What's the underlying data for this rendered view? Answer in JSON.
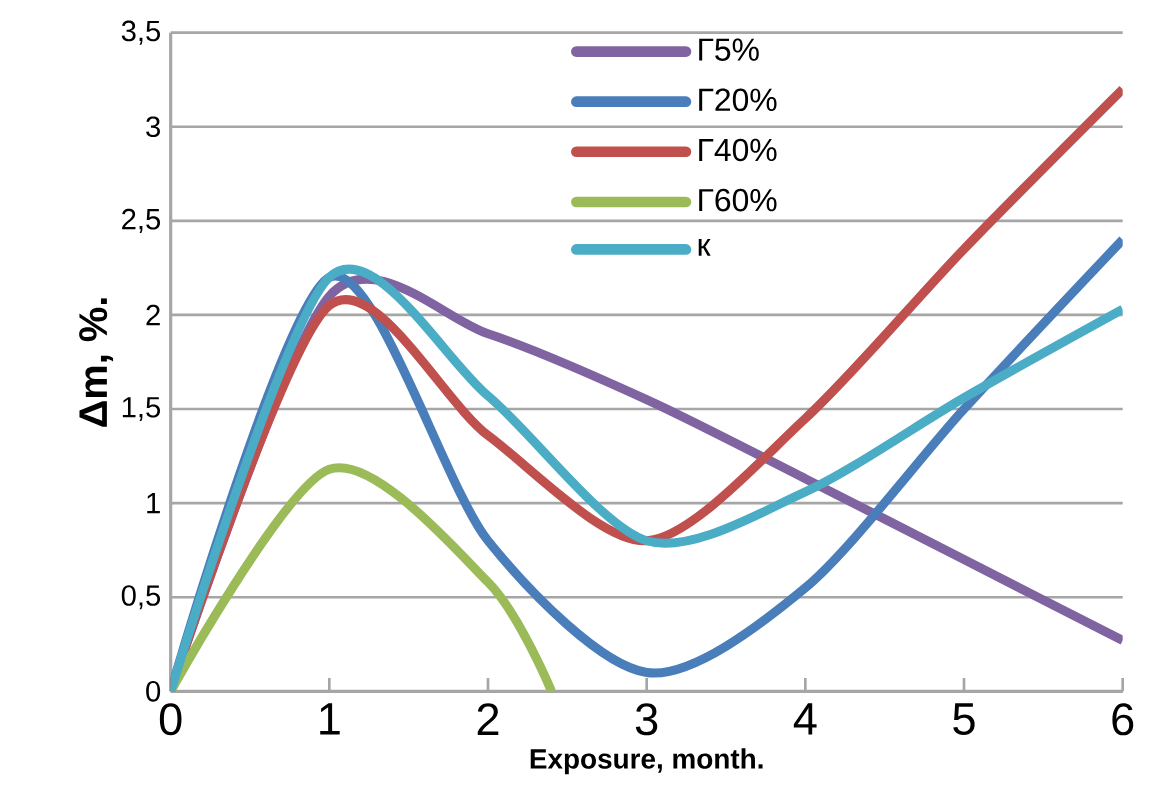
{
  "chart_data": {
    "type": "line",
    "xlabel": "Exposure, month.",
    "ylabel": "Δm, %.",
    "x": [
      0,
      1,
      2,
      3,
      4,
      5,
      6
    ],
    "series": [
      {
        "name": "Г5%",
        "color": "#8064a2",
        "values": [
          0,
          2.1,
          1.9,
          1.55,
          1.13,
          0.7,
          0.27
        ]
      },
      {
        "name": "Г20%",
        "color": "#4a7ebb",
        "values": [
          0,
          2.2,
          0.8,
          0.1,
          0.55,
          1.5,
          2.4
        ]
      },
      {
        "name": "Г40%",
        "color": "#c0504d",
        "values": [
          0,
          2.05,
          1.36,
          0.8,
          1.45,
          2.35,
          3.2
        ]
      },
      {
        "name": "Г60%",
        "color": "#9bbb59",
        "x": [
          0,
          1,
          2,
          2.4
        ],
        "values": [
          0,
          1.18,
          0.58,
          0
        ]
      },
      {
        "name": "к",
        "color": "#4bacc6",
        "values": [
          0,
          2.2,
          1.57,
          0.8,
          1.06,
          1.56,
          2.03
        ]
      }
    ],
    "xlim": [
      0,
      6
    ],
    "xticks": [
      0,
      1,
      2,
      3,
      4,
      5,
      6
    ],
    "ylim": [
      0,
      3.5
    ],
    "yticks": [
      0,
      {
        "value": 0.5,
        "label": "0,5"
      },
      1,
      {
        "value": 1.5,
        "label": "1,5"
      },
      2,
      {
        "value": 2.5,
        "label": "2,5"
      },
      3,
      {
        "value": 3.5,
        "label": "3,5"
      }
    ],
    "grid": "y",
    "legend": "top right",
    "marker": "none",
    "line_style": "solid"
  }
}
